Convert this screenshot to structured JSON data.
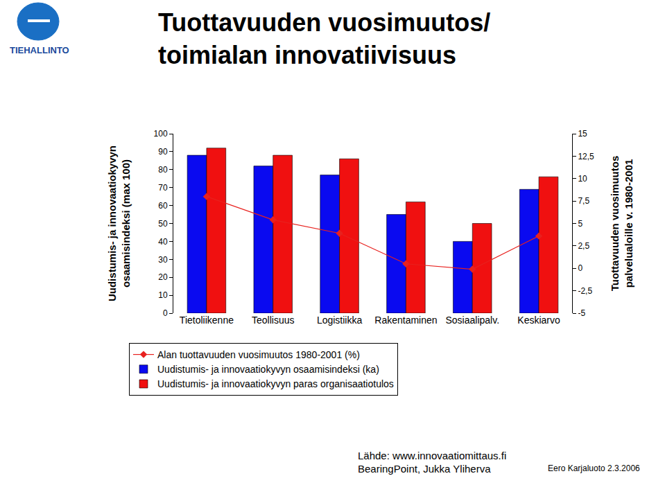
{
  "chart_data": {
    "type": "bar",
    "title": "Tuottavuuden vuosimuutos/\ntoimialan innovatiivisuus",
    "y_label": "Uudistumis- ja innovaatiokyvyn\nosaamisindeksi (max 100)",
    "y2_label": "Tuottavuuden vuosimuutos\npalvelualoille v. 1980-2001",
    "categories": [
      "Tietoliikenne",
      "Teollisuus",
      "Logistiikka",
      "Rakentaminen",
      "Sosiaalipalv.",
      "Keskiarvo"
    ],
    "series": [
      {
        "name": "Alan tuottavuuden vuosimuutos 1980-2001 (%)",
        "type": "line",
        "axis": "y2",
        "color": "#e8211e",
        "marker": "diamond",
        "values": [
          8,
          5.4,
          3.9,
          0.5,
          -0.1,
          3.6
        ]
      },
      {
        "name": "Uudistumis- ja innovaatiokyvyn osaamisindeksi (ka)",
        "type": "bar",
        "color": "#0a0af0",
        "values": [
          88,
          82,
          77,
          55,
          40,
          69
        ]
      },
      {
        "name": "Uudistumis- ja innovaatiokyvyn paras organisaatiotulos",
        "type": "bar",
        "color": "#f01010",
        "values": [
          92,
          88,
          86,
          62,
          50,
          76
        ]
      }
    ],
    "ylim": [
      0,
      100
    ],
    "yticks": [
      0,
      10,
      20,
      30,
      40,
      50,
      60,
      70,
      80,
      90,
      100
    ],
    "y2lim": [
      -5,
      15
    ],
    "y2ticks": [
      -5,
      {
        "value": -2.5,
        "label": "-2,5"
      },
      0,
      {
        "value": 2.5,
        "label": "2,5"
      },
      5,
      {
        "value": 7.5,
        "label": "7,5"
      },
      10,
      {
        "value": 12.5,
        "label": "12,5"
      },
      15
    ],
    "grid": false,
    "legend": "bottom",
    "annotations": [
      "TIEHALLINTO",
      "Lähde: www.innovaatiomittaus.fi",
      "BearingPoint, Jukka Yliherva",
      "Eero Karjaluoto 2.3.2006"
    ]
  }
}
